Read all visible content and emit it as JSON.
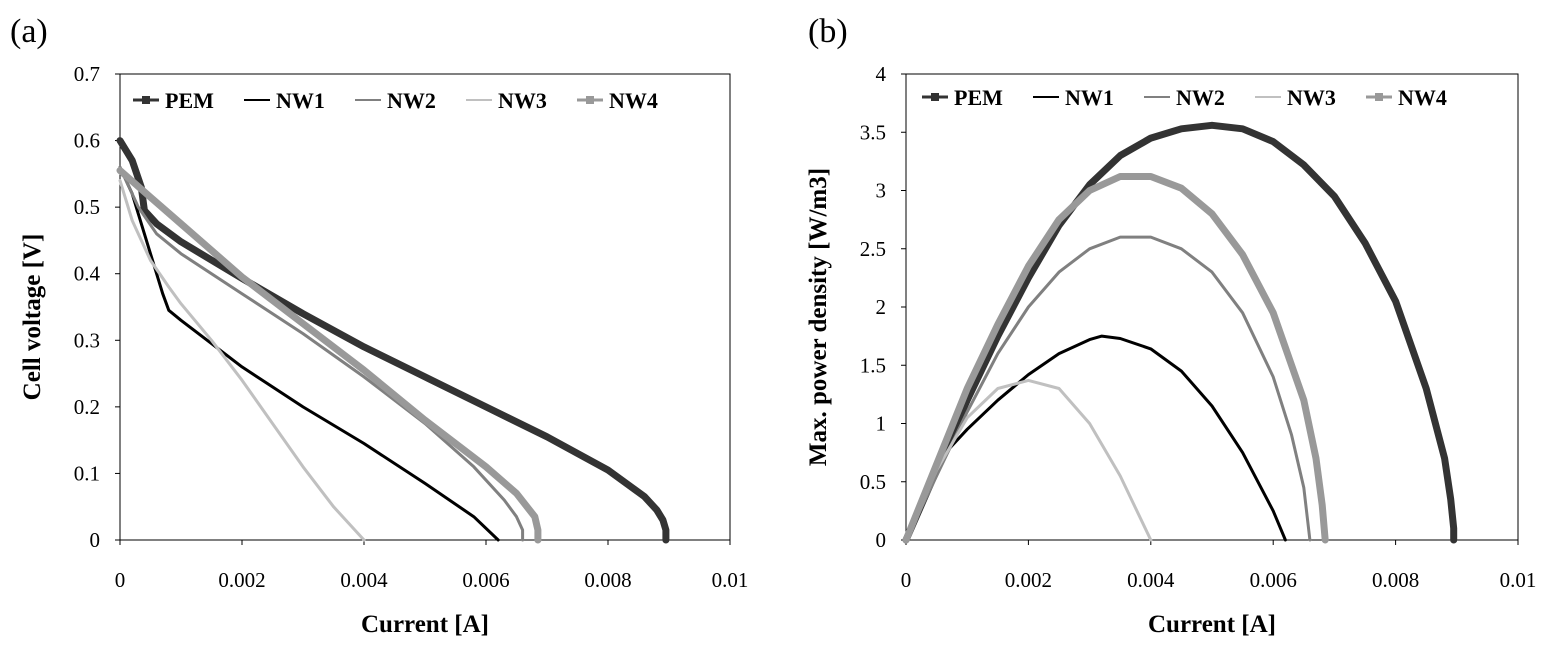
{
  "chart_data": [
    {
      "type": "line",
      "panel_label": "(a)",
      "title": "",
      "xlabel": "Current [A]",
      "ylabel": "Cell voltage [V]",
      "xlim": [
        0,
        0.01
      ],
      "ylim": [
        0,
        0.7
      ],
      "xticks": [
        "0",
        "0.002",
        "0.004",
        "0.006",
        "0.008",
        "0.01"
      ],
      "yticks": [
        "0",
        "0.1",
        "0.2",
        "0.3",
        "0.4",
        "0.5",
        "0.6",
        "0.7"
      ],
      "grid": false,
      "legend": "top, horizontal",
      "series": [
        {
          "name": "PEM",
          "color": "#333333",
          "x": [
            0,
            0.0002,
            0.00035,
            0.0004,
            0.0006,
            0.001,
            0.002,
            0.003,
            0.004,
            0.005,
            0.006,
            0.007,
            0.008,
            0.0086,
            0.0088,
            0.0089,
            0.00895,
            0.00895
          ],
          "y": [
            0.6,
            0.57,
            0.53,
            0.495,
            0.475,
            0.448,
            0.393,
            0.34,
            0.29,
            0.245,
            0.2,
            0.155,
            0.105,
            0.065,
            0.045,
            0.03,
            0.015,
            0
          ]
        },
        {
          "name": "NW1",
          "color": "#000000",
          "x": [
            0,
            0.0002,
            0.0004,
            0.0006,
            0.0007,
            0.0008,
            0.001,
            0.0015,
            0.002,
            0.003,
            0.004,
            0.005,
            0.0058,
            0.0062
          ],
          "y": [
            0.56,
            0.52,
            0.46,
            0.4,
            0.37,
            0.345,
            0.33,
            0.295,
            0.26,
            0.2,
            0.145,
            0.085,
            0.035,
            0
          ]
        },
        {
          "name": "NW2",
          "color": "#808080",
          "x": [
            0,
            0.0003,
            0.0006,
            0.001,
            0.002,
            0.003,
            0.004,
            0.005,
            0.0058,
            0.0063,
            0.0065,
            0.0066,
            0.0066
          ],
          "y": [
            0.56,
            0.5,
            0.46,
            0.43,
            0.37,
            0.31,
            0.245,
            0.175,
            0.11,
            0.06,
            0.035,
            0.015,
            0
          ]
        },
        {
          "name": "NW3",
          "color": "#c0c0c0",
          "x": [
            0,
            0.0002,
            0.0005,
            0.0008,
            0.001,
            0.0015,
            0.002,
            0.0025,
            0.003,
            0.0035,
            0.004
          ],
          "y": [
            0.54,
            0.48,
            0.42,
            0.38,
            0.355,
            0.3,
            0.24,
            0.175,
            0.11,
            0.05,
            0
          ]
        },
        {
          "name": "NW4",
          "color": "#999999",
          "x": [
            0,
            0.0005,
            0.001,
            0.0015,
            0.002,
            0.003,
            0.004,
            0.005,
            0.006,
            0.0065,
            0.0068,
            0.00685,
            0.00685
          ],
          "y": [
            0.555,
            0.515,
            0.475,
            0.435,
            0.395,
            0.325,
            0.255,
            0.18,
            0.11,
            0.07,
            0.035,
            0.015,
            0
          ]
        }
      ]
    },
    {
      "type": "line",
      "panel_label": "(b)",
      "title": "",
      "xlabel": "Current [A]",
      "ylabel": "Max. power density [W/m3]",
      "xlim": [
        0,
        0.01
      ],
      "ylim": [
        0,
        4
      ],
      "xticks": [
        "0",
        "0.002",
        "0.004",
        "0.006",
        "0.008",
        "0.01"
      ],
      "yticks": [
        "0",
        "0.5",
        "1",
        "1.5",
        "2",
        "2.5",
        "3",
        "3.5",
        "4"
      ],
      "grid": false,
      "legend": "top, horizontal",
      "series": [
        {
          "name": "PEM",
          "color": "#333333",
          "x": [
            0,
            0.0005,
            0.001,
            0.0015,
            0.002,
            0.0025,
            0.003,
            0.0035,
            0.004,
            0.0045,
            0.005,
            0.0055,
            0.006,
            0.0065,
            0.007,
            0.0075,
            0.008,
            0.0085,
            0.0088,
            0.0089,
            0.00895,
            0.00895
          ],
          "y": [
            0,
            0.6,
            1.2,
            1.75,
            2.25,
            2.7,
            3.05,
            3.3,
            3.45,
            3.53,
            3.56,
            3.53,
            3.42,
            3.22,
            2.95,
            2.55,
            2.05,
            1.3,
            0.7,
            0.35,
            0.1,
            0
          ]
        },
        {
          "name": "NW1",
          "color": "#000000",
          "x": [
            0.0007,
            0.001,
            0.0015,
            0.002,
            0.0025,
            0.003,
            0.0032,
            0.0035,
            0.004,
            0.0045,
            0.005,
            0.0055,
            0.006,
            0.0062
          ],
          "y": [
            0.78,
            0.95,
            1.2,
            1.42,
            1.6,
            1.72,
            1.75,
            1.73,
            1.64,
            1.45,
            1.15,
            0.75,
            0.25,
            0
          ]
        },
        {
          "name": "NW2",
          "color": "#808080",
          "x": [
            0,
            0.0005,
            0.001,
            0.0015,
            0.002,
            0.0025,
            0.003,
            0.0035,
            0.004,
            0.0045,
            0.005,
            0.0055,
            0.006,
            0.0063,
            0.0065,
            0.0066
          ],
          "y": [
            0,
            0.55,
            1.1,
            1.6,
            2.0,
            2.3,
            2.5,
            2.6,
            2.6,
            2.5,
            2.3,
            1.95,
            1.4,
            0.9,
            0.45,
            0
          ]
        },
        {
          "name": "NW3",
          "color": "#c0c0c0",
          "x": [
            0,
            0.0005,
            0.001,
            0.0015,
            0.002,
            0.0025,
            0.003,
            0.0035,
            0.004
          ],
          "y": [
            0,
            0.6,
            1.05,
            1.3,
            1.37,
            1.3,
            1.0,
            0.55,
            0
          ]
        },
        {
          "name": "NW4",
          "color": "#999999",
          "x": [
            0,
            0.0005,
            0.001,
            0.0015,
            0.002,
            0.0025,
            0.003,
            0.0035,
            0.004,
            0.0045,
            0.005,
            0.0055,
            0.006,
            0.0065,
            0.0067,
            0.0068,
            0.00685
          ],
          "y": [
            0,
            0.65,
            1.3,
            1.85,
            2.35,
            2.75,
            3.0,
            3.12,
            3.12,
            3.02,
            2.8,
            2.45,
            1.95,
            1.2,
            0.7,
            0.3,
            0
          ]
        }
      ]
    }
  ]
}
